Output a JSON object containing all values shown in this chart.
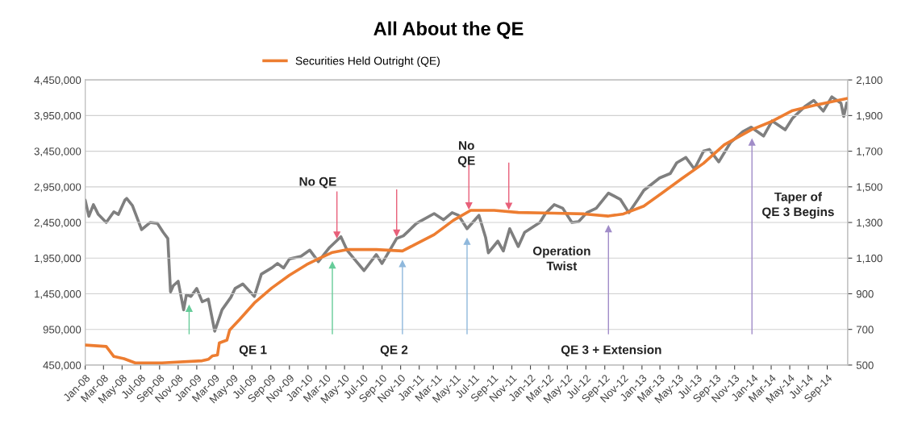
{
  "chart_data": {
    "type": "line",
    "title": "All About the QE",
    "xlim": [
      "2008-01-01",
      "2014-11-07"
    ],
    "xticks": [
      {
        "value": "2008-01",
        "label": "Jan-08"
      },
      {
        "value": "2008-03",
        "label": "Mar-08"
      },
      {
        "value": "2008-05",
        "label": "May-08"
      },
      {
        "value": "2008-07",
        "label": "Jul-08"
      },
      {
        "value": "2008-09",
        "label": "Sep-08"
      },
      {
        "value": "2008-11",
        "label": "Nov-08"
      },
      {
        "value": "2009-01",
        "label": "Jan-09"
      },
      {
        "value": "2009-03",
        "label": "Mar-09"
      },
      {
        "value": "2009-05",
        "label": "May-09"
      },
      {
        "value": "2009-07",
        "label": "Jul-09"
      },
      {
        "value": "2009-09",
        "label": "Sep-09"
      },
      {
        "value": "2009-11",
        "label": "Nov-09"
      },
      {
        "value": "2010-01",
        "label": "Jan-10"
      },
      {
        "value": "2010-03",
        "label": "Mar-10"
      },
      {
        "value": "2010-05",
        "label": "May-10"
      },
      {
        "value": "2010-07",
        "label": "Jul-10"
      },
      {
        "value": "2010-09",
        "label": "Sep-10"
      },
      {
        "value": "2010-11",
        "label": "Nov-10"
      },
      {
        "value": "2011-01",
        "label": "Jan-11"
      },
      {
        "value": "2011-03",
        "label": "Mar-11"
      },
      {
        "value": "2011-05",
        "label": "May-11"
      },
      {
        "value": "2011-07",
        "label": "Jul-11"
      },
      {
        "value": "2011-09",
        "label": "Sep-11"
      },
      {
        "value": "2011-11",
        "label": "Nov-11"
      },
      {
        "value": "2012-01",
        "label": "Jan-12"
      },
      {
        "value": "2012-03",
        "label": "Mar-12"
      },
      {
        "value": "2012-05",
        "label": "May-12"
      },
      {
        "value": "2012-07",
        "label": "Jul-12"
      },
      {
        "value": "2012-09",
        "label": "Sep-12"
      },
      {
        "value": "2012-11",
        "label": "Nov-12"
      },
      {
        "value": "2013-01",
        "label": "Jan-13"
      },
      {
        "value": "2013-03",
        "label": "Mar-13"
      },
      {
        "value": "2013-05",
        "label": "May-13"
      },
      {
        "value": "2013-07",
        "label": "Jul-13"
      },
      {
        "value": "2013-09",
        "label": "Sep-13"
      },
      {
        "value": "2013-11",
        "label": "Nov-13"
      },
      {
        "value": "2014-01",
        "label": "Jan-14"
      },
      {
        "value": "2014-03",
        "label": "Mar-14"
      },
      {
        "value": "2014-05",
        "label": "May-14"
      },
      {
        "value": "2014-07",
        "label": "Jul-14"
      },
      {
        "value": "2014-09",
        "label": "Sep-14"
      }
    ],
    "ylim": [
      450000,
      4450000
    ],
    "yticks": [
      {
        "value": 450000,
        "label": "450,000"
      },
      {
        "value": 950000,
        "label": "950,000"
      },
      {
        "value": 1450000,
        "label": "1,450,000"
      },
      {
        "value": 1950000,
        "label": "1,950,000"
      },
      {
        "value": 2450000,
        "label": "2,450,000"
      },
      {
        "value": 2950000,
        "label": "2,950,000"
      },
      {
        "value": 3450000,
        "label": "3,450,000"
      },
      {
        "value": 3950000,
        "label": "3,950,000"
      },
      {
        "value": 4450000,
        "label": "4,450,000"
      }
    ],
    "y2lim": [
      500,
      2100
    ],
    "y2ticks": [
      500,
      700,
      900,
      {
        "value": 1100,
        "label": "1,100"
      },
      {
        "value": 1300,
        "label": "1,300"
      },
      {
        "value": 1500,
        "label": "1,500"
      },
      {
        "value": 1700,
        "label": "1,700"
      },
      {
        "value": 1900,
        "label": "1,900"
      },
      {
        "value": 2100,
        "label": "2,100"
      }
    ],
    "grid": "y",
    "legend": "top",
    "series": [
      {
        "name": "Securities Held Outright (QE)",
        "color": "#ed7d31",
        "x": [
          "2008-01-01",
          "2008-03-10",
          "2008-04-04",
          "2008-05-07",
          "2008-06-13",
          "2008-09-09",
          "2009-01-19",
          "2009-02-08",
          "2009-02-22",
          "2009-03-10",
          "2009-03-16",
          "2009-04-10",
          "2009-04-19",
          "2009-05-22",
          "2009-07-09",
          "2009-09-04",
          "2009-11-01",
          "2009-12-28",
          "2010-02-04",
          "2010-03-22",
          "2010-05-09",
          "2010-08-13",
          "2010-11-07",
          "2010-12-13",
          "2011-02-19",
          "2011-04-23",
          "2011-06-19",
          "2011-09-04",
          "2011-11-22",
          "2012-03-19",
          "2012-06-25",
          "2012-09-13",
          "2012-11-01",
          "2013-01-07",
          "2013-03-07",
          "2013-05-13",
          "2013-07-22",
          "2013-09-28",
          "2013-12-25",
          "2014-03-04",
          "2014-05-10",
          "2014-07-28",
          "2014-11-04"
        ],
        "values": [
          730000,
          710000,
          570000,
          540000,
          480000,
          480000,
          510000,
          530000,
          580000,
          590000,
          760000,
          800000,
          940000,
          1090000,
          1320000,
          1530000,
          1710000,
          1860000,
          1940000,
          2030000,
          2070000,
          2070000,
          2050000,
          2130000,
          2280000,
          2480000,
          2620000,
          2620000,
          2590000,
          2580000,
          2570000,
          2540000,
          2570000,
          2680000,
          2860000,
          3070000,
          3280000,
          3540000,
          3750000,
          3870000,
          4020000,
          4100000,
          4190000
        ]
      },
      {
        "color": "#7f7f7f",
        "axis": "y2",
        "x": [
          "2008-01-01",
          "2008-01-13",
          "2008-01-28",
          "2008-02-13",
          "2008-03-10",
          "2008-04-04",
          "2008-04-19",
          "2008-05-10",
          "2008-05-16",
          "2008-06-04",
          "2008-07-04",
          "2008-08-01",
          "2008-08-25",
          "2008-09-13",
          "2008-09-28",
          "2008-10-07",
          "2008-10-16",
          "2008-11-01",
          "2008-11-19",
          "2008-11-28",
          "2008-12-13",
          "2009-01-01",
          "2009-01-19",
          "2009-02-08",
          "2009-03-01",
          "2009-03-25",
          "2009-04-23",
          "2009-05-07",
          "2009-06-01",
          "2009-07-09",
          "2009-08-01",
          "2009-09-04",
          "2009-09-23",
          "2009-10-13",
          "2009-11-01",
          "2009-12-09",
          "2010-01-07",
          "2010-02-04",
          "2010-03-13",
          "2010-04-19",
          "2010-05-09",
          "2010-06-07",
          "2010-07-04",
          "2010-08-13",
          "2010-09-01",
          "2010-10-19",
          "2010-11-10",
          "2010-12-23",
          "2011-02-19",
          "2011-03-22",
          "2011-04-19",
          "2011-05-10",
          "2011-06-07",
          "2011-07-16",
          "2011-08-07",
          "2011-08-16",
          "2011-09-16",
          "2011-10-04",
          "2011-10-25",
          "2011-11-22",
          "2011-12-13",
          "2012-02-01",
          "2012-02-19",
          "2012-03-19",
          "2012-04-16",
          "2012-05-16",
          "2012-06-07",
          "2012-07-04",
          "2012-08-04",
          "2012-09-13",
          "2012-10-22",
          "2012-11-19",
          "2012-12-19",
          "2013-01-07",
          "2013-02-28",
          "2013-04-04",
          "2013-04-25",
          "2013-05-25",
          "2013-06-22",
          "2013-07-22",
          "2013-08-10",
          "2013-09-10",
          "2013-10-19",
          "2013-11-28",
          "2013-12-25",
          "2014-02-04",
          "2014-03-04",
          "2014-04-16",
          "2014-05-10",
          "2014-06-19",
          "2014-07-19",
          "2014-08-19",
          "2014-09-16",
          "2014-10-16",
          "2014-10-25",
          "2014-11-04"
        ],
        "values": [
          1425,
          1335,
          1400,
          1345,
          1300,
          1360,
          1345,
          1425,
          1435,
          1395,
          1260,
          1300,
          1295,
          1245,
          1210,
          910,
          945,
          970,
          810,
          895,
          885,
          930,
          855,
          870,
          690,
          810,
          880,
          930,
          955,
          885,
          1010,
          1045,
          1070,
          1045,
          1095,
          1110,
          1145,
          1080,
          1160,
          1220,
          1145,
          1085,
          1030,
          1120,
          1070,
          1210,
          1225,
          1295,
          1350,
          1315,
          1355,
          1340,
          1265,
          1340,
          1215,
          1130,
          1195,
          1140,
          1265,
          1165,
          1245,
          1300,
          1350,
          1400,
          1380,
          1300,
          1305,
          1355,
          1380,
          1465,
          1430,
          1355,
          1430,
          1480,
          1550,
          1575,
          1635,
          1665,
          1600,
          1700,
          1710,
          1640,
          1750,
          1810,
          1835,
          1785,
          1870,
          1820,
          1885,
          1950,
          1985,
          1925,
          2005,
          1970,
          1895,
          1970
        ]
      }
    ],
    "ref_lines": [
      {
        "axis": "x",
        "value": "2008-12-07",
        "color": "#66cc99"
      },
      {
        "axis": "x",
        "value": "2010-03-22",
        "color": "#66cc99"
      },
      {
        "axis": "x",
        "value": "2010-11-07",
        "color": "#8fb8dc"
      },
      {
        "axis": "x",
        "value": "2011-06-07",
        "color": "#8fb8dc"
      },
      {
        "axis": "x",
        "value": "2012-09-13",
        "color": "#a08cc8"
      },
      {
        "axis": "x",
        "value": "2013-12-28",
        "color": "#a08cc8"
      },
      {
        "axis": "x",
        "value": "2010-04-06",
        "color": "#e8607a"
      },
      {
        "axis": "x",
        "value": "2010-10-19",
        "color": "#e8607a"
      },
      {
        "axis": "x",
        "value": "2011-06-13",
        "color": "#e8607a"
      },
      {
        "axis": "x",
        "value": "2011-10-22",
        "color": "#e8607a"
      }
    ],
    "annotations": [
      "No QE",
      "No\nQE",
      "QE 1",
      "QE 2",
      "QE 3 + Extension",
      "Operation\nTwist",
      "Taper of\nQE 3 Begins"
    ]
  }
}
